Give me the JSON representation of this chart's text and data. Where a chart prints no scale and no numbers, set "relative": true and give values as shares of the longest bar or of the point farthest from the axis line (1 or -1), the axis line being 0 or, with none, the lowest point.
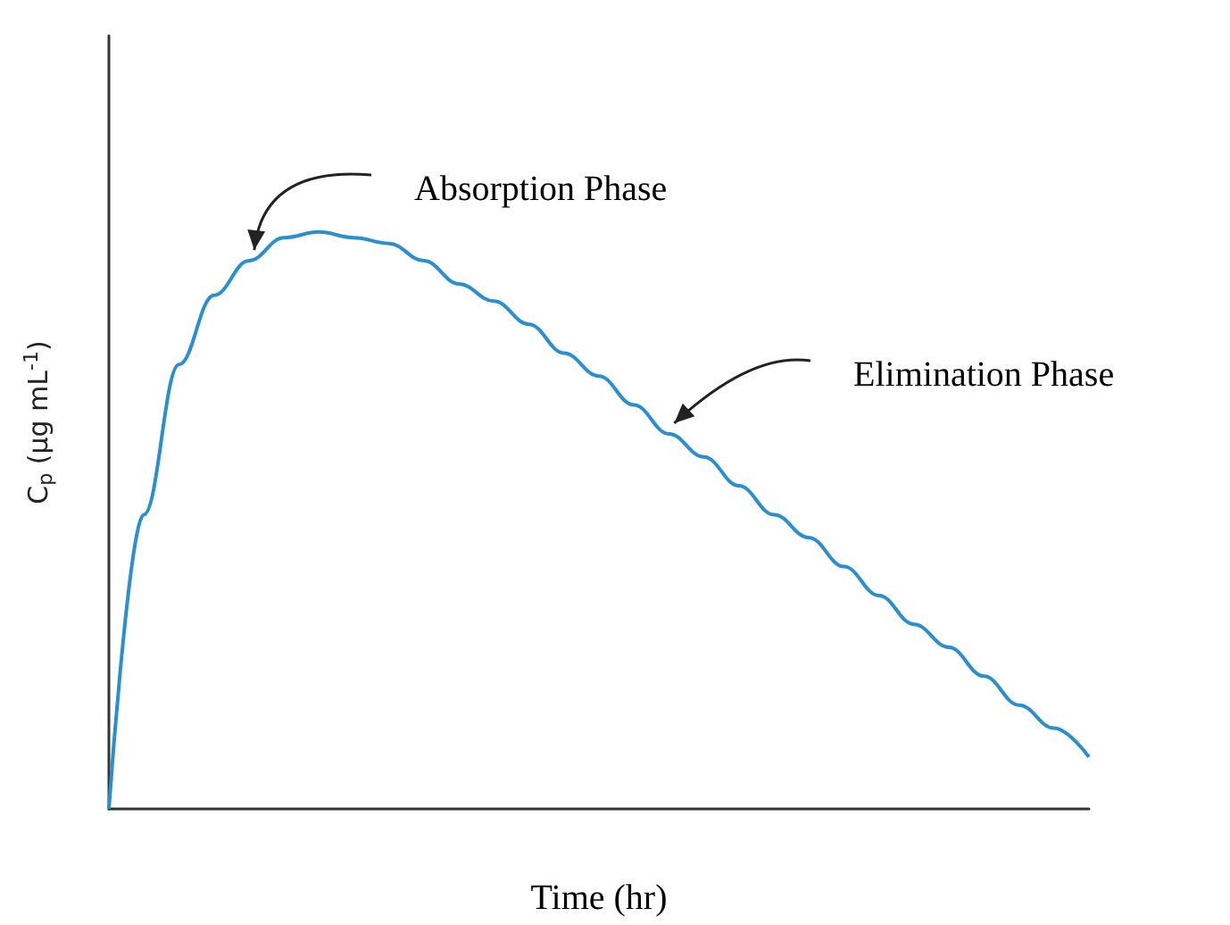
{
  "chart_data": {
    "type": "line",
    "relative": true,
    "xlabel": "Time (hr)",
    "ylabel": "C$_{p}$ (μg mL$^{-1}$)",
    "annotations": [
      "Absorption Phase",
      "Elimination Phase"
    ],
    "categories": [
      null,
      null,
      null,
      null,
      null,
      null,
      null,
      null,
      null,
      null,
      null,
      null,
      null,
      null,
      null,
      null,
      null,
      null,
      null,
      null,
      null,
      null,
      null,
      null,
      null,
      null,
      null,
      null,
      null
    ],
    "series": [
      {
        "color": "#2a8fd0",
        "values": [
          0,
          0.51,
          0.77,
          0.89,
          0.95,
          0.99,
          1,
          0.99,
          0.98,
          0.95,
          0.91,
          0.88,
          0.84,
          0.79,
          0.75,
          0.7,
          0.65,
          0.61,
          0.56,
          0.51,
          0.47,
          0.42,
          0.37,
          0.32,
          0.28,
          0.23,
          0.18,
          0.14,
          0.09
        ]
      }
    ],
    "grid": false,
    "marker": "none",
    "line_style": "solid",
    "tick_labels": false
  }
}
